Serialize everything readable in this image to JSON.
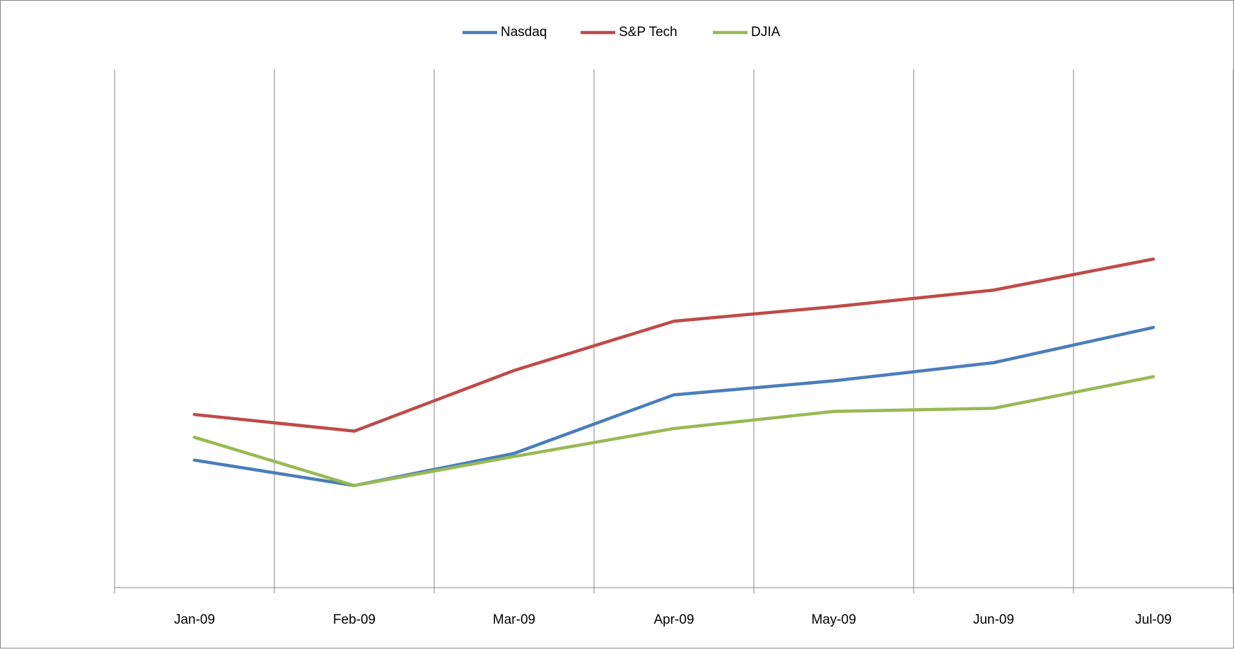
{
  "chart_data": {
    "type": "line",
    "categories": [
      "Jan-09",
      "Feb-09",
      "Mar-09",
      "Apr-09",
      "May-09",
      "Jun-09",
      "Jul-09"
    ],
    "series": [
      {
        "name": "Nasdaq",
        "color": "#4a7ebb",
        "values": [
          24.6,
          19.7,
          25.9,
          37.2,
          39.9,
          43.4,
          50.2
        ]
      },
      {
        "name": "S&P Tech",
        "color": "#be4b48",
        "values": [
          33.4,
          30.2,
          41.9,
          51.4,
          54.2,
          57.4,
          63.4
        ]
      },
      {
        "name": "DJIA",
        "color": "#98b954",
        "values": [
          29.0,
          19.7,
          25.3,
          30.7,
          34.0,
          34.6,
          40.7
        ]
      }
    ],
    "ylim": [
      0,
      100
    ],
    "grid": true,
    "legend": "top"
  }
}
